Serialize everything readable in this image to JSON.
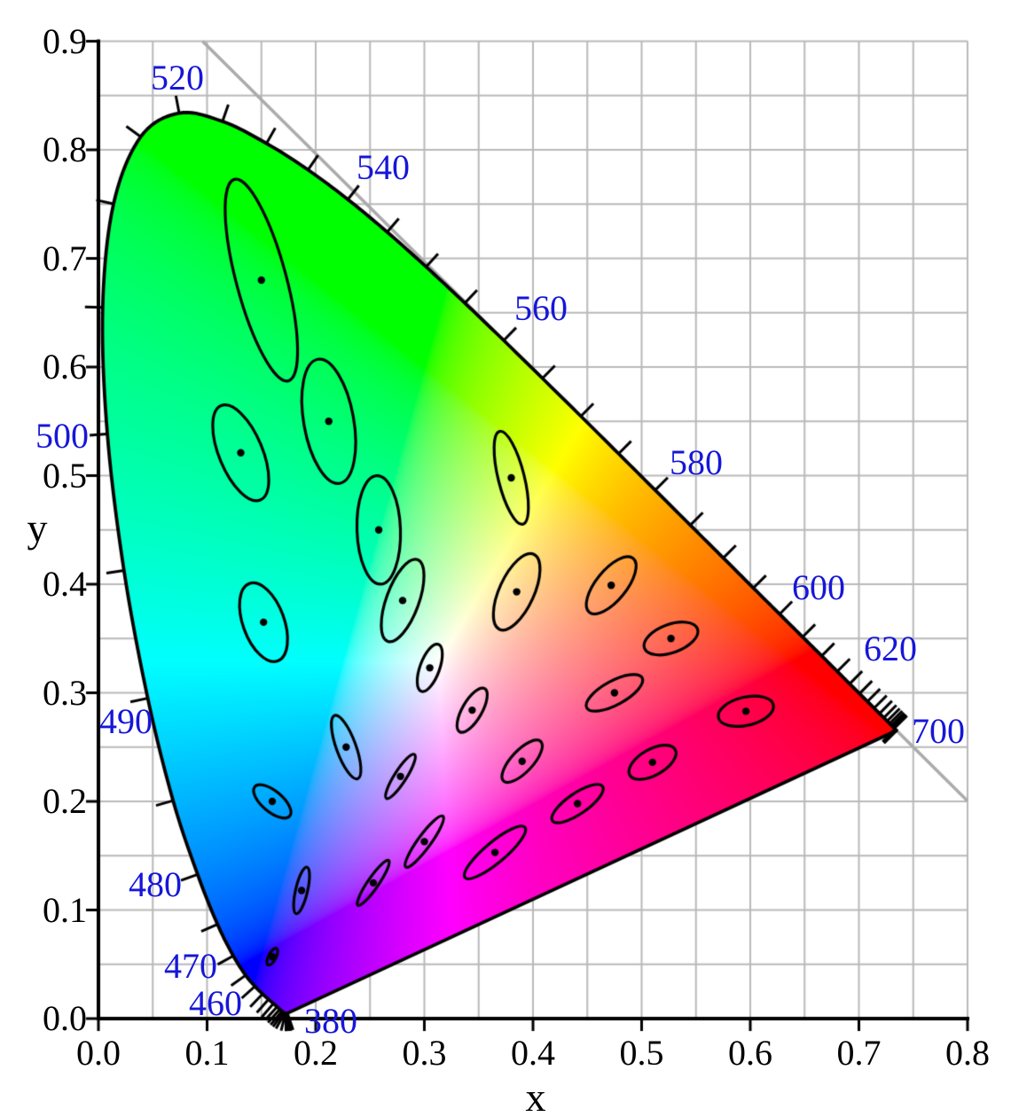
{
  "chart_data": {
    "type": "scatter",
    "subtype": "cie-1931-xy-chromaticity-diagram-with-macadam-ellipses",
    "xlabel": "x",
    "ylabel": "y",
    "xlim": [
      0,
      0.8
    ],
    "ylim": [
      0,
      0.9
    ],
    "grid_step": 0.05,
    "tick_step": 0.1,
    "x_tick_labels": [
      "0.0",
      "0.1",
      "0.2",
      "0.3",
      "0.4",
      "0.5",
      "0.6",
      "0.7",
      "0.8"
    ],
    "y_tick_labels": [
      "0.0",
      "0.1",
      "0.2",
      "0.3",
      "0.4",
      "0.5",
      "0.6",
      "0.7",
      "0.8",
      "0.9"
    ],
    "wavelength_tick_step_nm": 5,
    "wavelength_labels": [
      {
        "text": "380",
        "x": 0.2139,
        "y": -0.0024
      },
      {
        "text": "460",
        "x": 0.1078,
        "y": 0.0139
      },
      {
        "text": "470",
        "x": 0.0849,
        "y": 0.0482
      },
      {
        "text": "480",
        "x": 0.0522,
        "y": 0.1233
      },
      {
        "text": "490",
        "x": 0.0253,
        "y": 0.2735
      },
      {
        "text": "500",
        "x": -0.0335,
        "y": 0.5363
      },
      {
        "text": "520",
        "x": 0.0727,
        "y": 0.8661
      },
      {
        "text": "540",
        "x": 0.262,
        "y": 0.7837
      },
      {
        "text": "560",
        "x": 0.4073,
        "y": 0.6539
      },
      {
        "text": "580",
        "x": 0.5502,
        "y": 0.5118
      },
      {
        "text": "600",
        "x": 0.6629,
        "y": 0.3967
      },
      {
        "text": "620",
        "x": 0.729,
        "y": 0.3404
      },
      {
        "text": "700",
        "x": 0.7731,
        "y": 0.2645
      }
    ],
    "spectral_locus": [
      [
        380,
        0.1741,
        0.005
      ],
      [
        385,
        0.174,
        0.005
      ],
      [
        390,
        0.1738,
        0.0049
      ],
      [
        395,
        0.1736,
        0.0049
      ],
      [
        400,
        0.1733,
        0.0048
      ],
      [
        405,
        0.173,
        0.0048
      ],
      [
        410,
        0.1726,
        0.0048
      ],
      [
        415,
        0.1721,
        0.0048
      ],
      [
        420,
        0.1714,
        0.0051
      ],
      [
        425,
        0.1703,
        0.0058
      ],
      [
        430,
        0.1689,
        0.0069
      ],
      [
        435,
        0.1669,
        0.0086
      ],
      [
        440,
        0.1644,
        0.0109
      ],
      [
        445,
        0.1611,
        0.0138
      ],
      [
        450,
        0.1566,
        0.0177
      ],
      [
        455,
        0.151,
        0.0227
      ],
      [
        460,
        0.144,
        0.0297
      ],
      [
        465,
        0.1355,
        0.0399
      ],
      [
        470,
        0.1241,
        0.0578
      ],
      [
        475,
        0.1096,
        0.0868
      ],
      [
        480,
        0.0913,
        0.1327
      ],
      [
        485,
        0.0687,
        0.2007
      ],
      [
        490,
        0.0454,
        0.295
      ],
      [
        495,
        0.0235,
        0.4127
      ],
      [
        500,
        0.0082,
        0.5384
      ],
      [
        505,
        0.0039,
        0.6548
      ],
      [
        510,
        0.0139,
        0.7502
      ],
      [
        515,
        0.0389,
        0.812
      ],
      [
        520,
        0.0743,
        0.8338
      ],
      [
        525,
        0.1142,
        0.8262
      ],
      [
        530,
        0.1547,
        0.8059
      ],
      [
        535,
        0.1929,
        0.7816
      ],
      [
        540,
        0.2296,
        0.7543
      ],
      [
        545,
        0.2658,
        0.7243
      ],
      [
        550,
        0.3016,
        0.6923
      ],
      [
        555,
        0.3373,
        0.6589
      ],
      [
        560,
        0.3731,
        0.6245
      ],
      [
        565,
        0.4087,
        0.5896
      ],
      [
        570,
        0.4441,
        0.5547
      ],
      [
        575,
        0.4788,
        0.5202
      ],
      [
        580,
        0.5125,
        0.4866
      ],
      [
        585,
        0.5448,
        0.4544
      ],
      [
        590,
        0.5752,
        0.4242
      ],
      [
        595,
        0.6029,
        0.3965
      ],
      [
        600,
        0.627,
        0.3725
      ],
      [
        605,
        0.6482,
        0.3514
      ],
      [
        610,
        0.6658,
        0.334
      ],
      [
        615,
        0.6801,
        0.3197
      ],
      [
        620,
        0.6915,
        0.3083
      ],
      [
        625,
        0.7006,
        0.2993
      ],
      [
        630,
        0.7079,
        0.292
      ],
      [
        635,
        0.714,
        0.2859
      ],
      [
        640,
        0.719,
        0.2809
      ],
      [
        645,
        0.723,
        0.277
      ],
      [
        650,
        0.726,
        0.274
      ],
      [
        655,
        0.7283,
        0.2717
      ],
      [
        660,
        0.73,
        0.27
      ],
      [
        665,
        0.7311,
        0.2689
      ],
      [
        670,
        0.732,
        0.268
      ],
      [
        675,
        0.7327,
        0.2673
      ],
      [
        680,
        0.7334,
        0.2666
      ],
      [
        685,
        0.734,
        0.266
      ],
      [
        690,
        0.7344,
        0.2656
      ],
      [
        695,
        0.7346,
        0.2654
      ],
      [
        700,
        0.7347,
        0.2653
      ]
    ],
    "gray_line": {
      "x1": 0.0958,
      "y1": 0.9,
      "x2": 0.8,
      "y2": 0.2004
    },
    "macadam_ellipses": {
      "magnification": 10,
      "ellipses": [
        {
          "x": 0.16,
          "y": 0.057,
          "a": 0.85,
          "b": 0.35,
          "theta_deg": 62.5
        },
        {
          "x": 0.187,
          "y": 0.118,
          "a": 2.2,
          "b": 0.55,
          "theta_deg": 77.0
        },
        {
          "x": 0.253,
          "y": 0.125,
          "a": 2.5,
          "b": 0.5,
          "theta_deg": 55.5
        },
        {
          "x": 0.15,
          "y": 0.68,
          "a": 9.6,
          "b": 2.3,
          "theta_deg": 105.0
        },
        {
          "x": 0.131,
          "y": 0.521,
          "a": 4.7,
          "b": 2.0,
          "theta_deg": 112.5
        },
        {
          "x": 0.212,
          "y": 0.55,
          "a": 5.8,
          "b": 2.3,
          "theta_deg": 100.0
        },
        {
          "x": 0.258,
          "y": 0.45,
          "a": 5.0,
          "b": 2.0,
          "theta_deg": 92.0
        },
        {
          "x": 0.152,
          "y": 0.365,
          "a": 3.8,
          "b": 1.9,
          "theta_deg": 110.0
        },
        {
          "x": 0.28,
          "y": 0.385,
          "a": 4.0,
          "b": 1.5,
          "theta_deg": 70.0
        },
        {
          "x": 0.38,
          "y": 0.498,
          "a": 4.4,
          "b": 1.2,
          "theta_deg": 104.0
        },
        {
          "x": 0.16,
          "y": 0.2,
          "a": 2.1,
          "b": 0.95,
          "theta_deg": 140.0
        },
        {
          "x": 0.228,
          "y": 0.25,
          "a": 3.1,
          "b": 0.9,
          "theta_deg": 110.0
        },
        {
          "x": 0.305,
          "y": 0.323,
          "a": 2.3,
          "b": 0.9,
          "theta_deg": 70.0
        },
        {
          "x": 0.385,
          "y": 0.393,
          "a": 3.8,
          "b": 1.6,
          "theta_deg": 65.5
        },
        {
          "x": 0.472,
          "y": 0.399,
          "a": 3.2,
          "b": 1.4,
          "theta_deg": 51.0
        },
        {
          "x": 0.527,
          "y": 0.35,
          "a": 2.6,
          "b": 1.3,
          "theta_deg": 20.0
        },
        {
          "x": 0.475,
          "y": 0.3,
          "a": 2.9,
          "b": 1.1,
          "theta_deg": 28.5
        },
        {
          "x": 0.51,
          "y": 0.236,
          "a": 2.4,
          "b": 1.2,
          "theta_deg": 29.5
        },
        {
          "x": 0.596,
          "y": 0.283,
          "a": 2.6,
          "b": 1.3,
          "theta_deg": 13.0
        },
        {
          "x": 0.344,
          "y": 0.284,
          "a": 2.3,
          "b": 0.9,
          "theta_deg": 60.0
        },
        {
          "x": 0.39,
          "y": 0.237,
          "a": 2.5,
          "b": 1.0,
          "theta_deg": 47.0
        },
        {
          "x": 0.441,
          "y": 0.198,
          "a": 2.8,
          "b": 0.95,
          "theta_deg": 34.5
        },
        {
          "x": 0.278,
          "y": 0.223,
          "a": 2.4,
          "b": 0.55,
          "theta_deg": 57.5
        },
        {
          "x": 0.3,
          "y": 0.163,
          "a": 2.9,
          "b": 0.6,
          "theta_deg": 54.0
        },
        {
          "x": 0.365,
          "y": 0.153,
          "a": 3.6,
          "b": 0.95,
          "theta_deg": 40.0
        }
      ]
    },
    "colors": {
      "background": "#ffffff",
      "grid": "#b9b9b9",
      "gray_line": "#ababab",
      "axis": "#000000",
      "locus_outline": "#000000",
      "ellipse": "#000000",
      "wavelength_label": "#1616d9",
      "tick_label": "#000000"
    }
  }
}
